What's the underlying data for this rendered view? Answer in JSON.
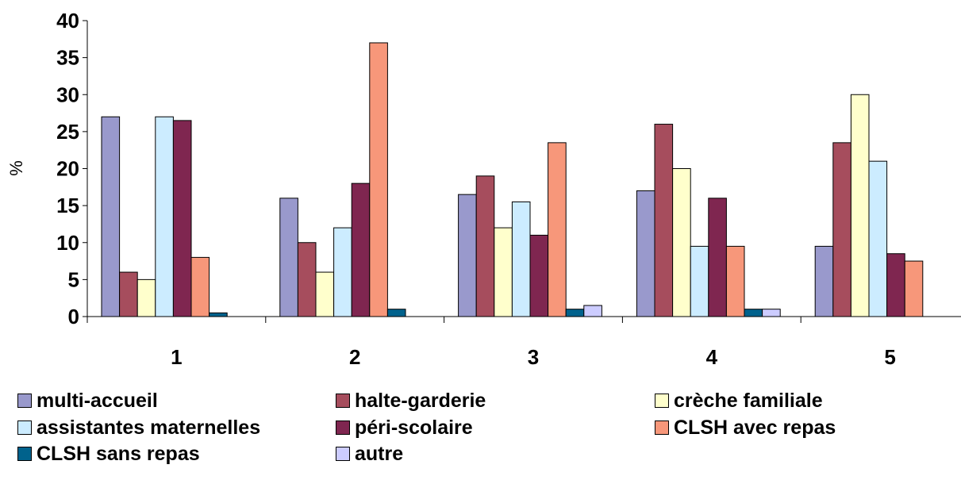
{
  "chart_data": {
    "type": "bar",
    "ylabel": "%",
    "ylim": [
      0,
      40
    ],
    "yticks": [
      0,
      5,
      10,
      15,
      20,
      25,
      30,
      35,
      40
    ],
    "categories": [
      "1",
      "2",
      "3",
      "4",
      "5"
    ],
    "legend_position": "bottom",
    "series": [
      {
        "name": "multi-accueil",
        "color": "#9999cc",
        "values": [
          27,
          16,
          16.5,
          17,
          9.5
        ]
      },
      {
        "name": "halte-garderie",
        "color": "#a64d5d",
        "values": [
          6,
          10,
          19,
          26,
          23.5
        ]
      },
      {
        "name": "crèche familiale",
        "color": "#ffffcc",
        "values": [
          5,
          6,
          12,
          20,
          30
        ]
      },
      {
        "name": "assistantes maternelles",
        "color": "#ccecff",
        "values": [
          27,
          12,
          15.5,
          9.5,
          21
        ]
      },
      {
        "name": "péri-scolaire",
        "color": "#7f2650",
        "values": [
          26.5,
          18,
          11,
          16,
          8.5
        ]
      },
      {
        "name": "CLSH avec repas",
        "color": "#f7977a",
        "values": [
          8,
          37,
          23.5,
          9.5,
          7.5
        ]
      },
      {
        "name": "CLSH sans repas",
        "color": "#00628c",
        "values": [
          0.5,
          1,
          1,
          1,
          0
        ]
      },
      {
        "name": "autre",
        "color": "#ccccff",
        "values": [
          0,
          0,
          1.5,
          1,
          0
        ]
      }
    ]
  }
}
